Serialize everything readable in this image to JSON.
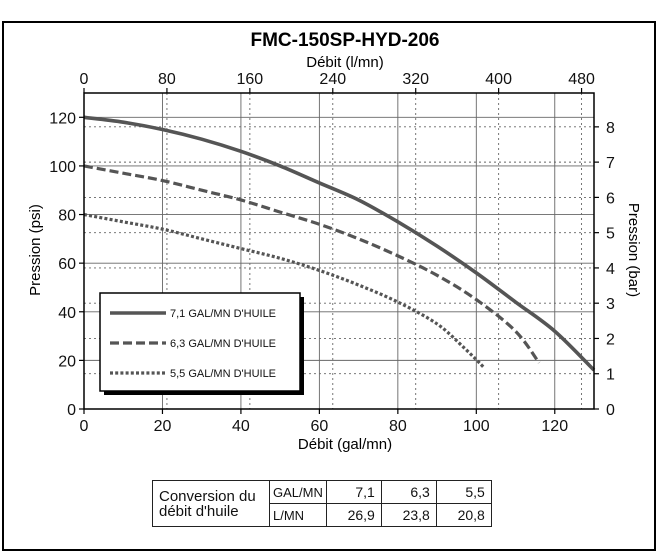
{
  "chart_data": {
    "type": "line",
    "title": "FMC-150SP-HYD-206",
    "top_axis": {
      "label": "Débit (l/mn)",
      "range": [
        0,
        492
      ],
      "ticks": [
        "0",
        "80",
        "160",
        "240",
        "320",
        "400",
        "480"
      ]
    },
    "x_axis": {
      "label": "Débit (gal/mn)",
      "range": [
        0,
        130
      ],
      "ticks": [
        "0",
        "20",
        "40",
        "60",
        "80",
        "100",
        "120"
      ]
    },
    "y_axis": {
      "label": "Pression (psi)",
      "range": [
        0,
        130
      ],
      "ticks": [
        "0",
        "20",
        "40",
        "60",
        "80",
        "100",
        "120"
      ]
    },
    "right_axis": {
      "label": "Pression (bar)",
      "range": [
        0,
        8.96
      ],
      "ticks": [
        "0",
        "1",
        "2",
        "3",
        "4",
        "5",
        "6",
        "7",
        "8"
      ]
    },
    "grid": true,
    "legend_position": "lower-left",
    "series": [
      {
        "name": "7,1 GAL/MN D'HUILE",
        "style": "solid",
        "points": [
          [
            0,
            120
          ],
          [
            10,
            118
          ],
          [
            20,
            115
          ],
          [
            30,
            111
          ],
          [
            40,
            106
          ],
          [
            50,
            100
          ],
          [
            60,
            93
          ],
          [
            70,
            86
          ],
          [
            80,
            77
          ],
          [
            90,
            67
          ],
          [
            100,
            56
          ],
          [
            110,
            44
          ],
          [
            120,
            32
          ],
          [
            130,
            16
          ]
        ]
      },
      {
        "name": "6,3 GAL/MN D'HUILE",
        "style": "dashed",
        "points": [
          [
            0,
            100
          ],
          [
            10,
            97
          ],
          [
            20,
            94
          ],
          [
            30,
            90
          ],
          [
            40,
            86
          ],
          [
            50,
            81
          ],
          [
            60,
            76
          ],
          [
            70,
            70
          ],
          [
            80,
            63
          ],
          [
            90,
            55
          ],
          [
            100,
            45
          ],
          [
            110,
            32
          ],
          [
            116,
            19
          ]
        ]
      },
      {
        "name": "5,5 GAL/MN D'HUILE",
        "style": "dotted",
        "points": [
          [
            0,
            80
          ],
          [
            10,
            77
          ],
          [
            20,
            74
          ],
          [
            30,
            70
          ],
          [
            40,
            66
          ],
          [
            50,
            62
          ],
          [
            60,
            57
          ],
          [
            70,
            51
          ],
          [
            80,
            44
          ],
          [
            90,
            35
          ],
          [
            97,
            25
          ],
          [
            102,
            17
          ]
        ]
      }
    ]
  },
  "conversion_table": {
    "header": "Conversion du débit d'huile",
    "rows": [
      {
        "unit": "GAL/MN",
        "values": [
          "7,1",
          "6,3",
          "5,5"
        ]
      },
      {
        "unit": "L/MN",
        "values": [
          "26,9",
          "23,8",
          "20,8"
        ]
      }
    ]
  }
}
